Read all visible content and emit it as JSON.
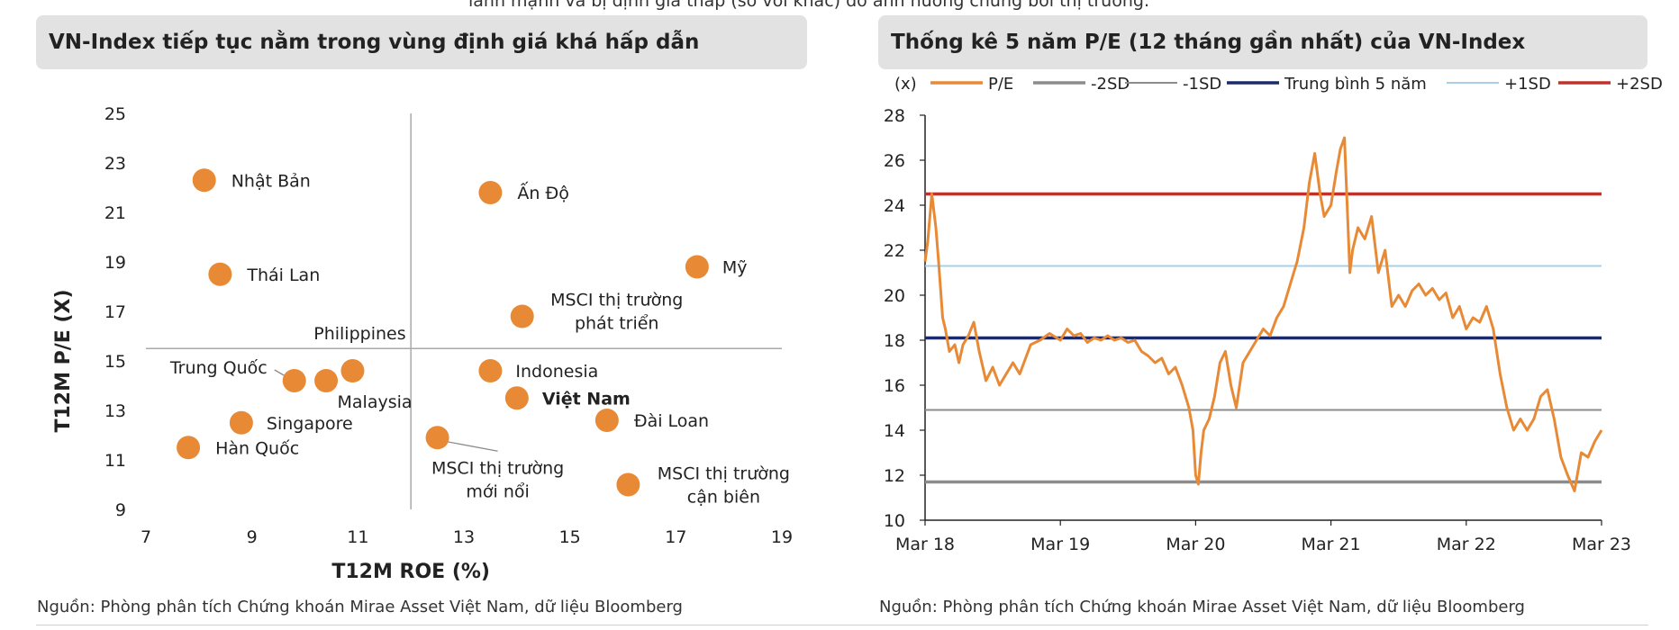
{
  "top_text": "lành mạnh và bị định giá thấp (so với khác) do ảnh hưởng chung bởi thị trường.",
  "left_panel": {
    "title": "VN-Index tiếp tục nằm trong vùng định giá khá hấp dẫn",
    "source": "Nguồn: Phòng phân tích Chứng khoán Mirae Asset Việt Nam, dữ liệu Bloomberg"
  },
  "right_panel": {
    "title": "Thống kê 5 năm P/E (12 tháng gần nhất) của VN-Index",
    "source": "Nguồn: Phòng phân tích Chứng khoán Mirae Asset Việt Nam, dữ liệu Bloomberg"
  },
  "chart_data": [
    {
      "type": "scatter",
      "xlabel": "T12M ROE (%)",
      "ylabel": "T12M P/E (X)",
      "xlim": [
        7,
        19
      ],
      "ylim": [
        9,
        25
      ],
      "xticks": [
        "7",
        "9",
        "11",
        "13",
        "15",
        "17",
        "19"
      ],
      "yticks": [
        "9",
        "11",
        "13",
        "15",
        "17",
        "19",
        "21",
        "23",
        "25"
      ],
      "reference_lines": {
        "x": 12,
        "y": 15.5
      },
      "marker_color": "#e88a35",
      "points": [
        {
          "label": "Nhật Bản",
          "x": 8.1,
          "y": 22.3
        },
        {
          "label": "Ấn Độ",
          "x": 13.5,
          "y": 21.8
        },
        {
          "label": "Mỹ",
          "x": 17.4,
          "y": 18.8
        },
        {
          "label": "Thái Lan",
          "x": 8.4,
          "y": 18.5
        },
        {
          "label": "MSCI thị trường phát triển",
          "x": 14.1,
          "y": 16.8
        },
        {
          "label": "Philippines",
          "x": 10.9,
          "y": 14.6
        },
        {
          "label": "Trung Quốc",
          "x": 9.8,
          "y": 14.2
        },
        {
          "label": "Malaysia",
          "x": 10.4,
          "y": 14.2
        },
        {
          "label": "Indonesia",
          "x": 13.5,
          "y": 14.6
        },
        {
          "label": "Việt Nam",
          "x": 14.0,
          "y": 13.5,
          "bold": true
        },
        {
          "label": "Singapore",
          "x": 8.8,
          "y": 12.5
        },
        {
          "label": "Đài Loan",
          "x": 15.7,
          "y": 12.6
        },
        {
          "label": "Hàn Quốc",
          "x": 7.8,
          "y": 11.5
        },
        {
          "label": "MSCI thị trường mới nổi",
          "x": 12.5,
          "y": 11.9
        },
        {
          "label": "MSCI thị trường cận biên",
          "x": 16.1,
          "y": 10.0
        }
      ]
    },
    {
      "type": "line",
      "unit_label": "(x)",
      "ylim": [
        10,
        28
      ],
      "yticks": [
        "10",
        "12",
        "14",
        "16",
        "18",
        "20",
        "22",
        "24",
        "26",
        "28"
      ],
      "xticks": [
        "Mar 18",
        "Mar 19",
        "Mar 20",
        "Mar 21",
        "Mar 22",
        "Mar 23"
      ],
      "xlim": [
        2018.0,
        2023.0
      ],
      "series": [
        {
          "name": "P/E",
          "color": "#e88a35",
          "x": [
            2018.0,
            2018.02,
            2018.05,
            2018.08,
            2018.1,
            2018.13,
            2018.15,
            2018.18,
            2018.22,
            2018.25,
            2018.28,
            2018.32,
            2018.36,
            2018.4,
            2018.45,
            2018.5,
            2018.55,
            2018.6,
            2018.65,
            2018.7,
            2018.78,
            2018.85,
            2018.92,
            2019.0,
            2019.05,
            2019.1,
            2019.15,
            2019.2,
            2019.25,
            2019.3,
            2019.35,
            2019.4,
            2019.45,
            2019.5,
            2019.55,
            2019.6,
            2019.65,
            2019.7,
            2019.75,
            2019.8,
            2019.85,
            2019.9,
            2019.95,
            2019.98,
            2020.0,
            2020.02,
            2020.04,
            2020.06,
            2020.1,
            2020.14,
            2020.18,
            2020.22,
            2020.26,
            2020.3,
            2020.35,
            2020.4,
            2020.45,
            2020.5,
            2020.55,
            2020.6,
            2020.65,
            2020.7,
            2020.75,
            2020.8,
            2020.84,
            2020.88,
            2020.92,
            2020.95,
            2021.0,
            2021.04,
            2021.07,
            2021.1,
            2021.12,
            2021.14,
            2021.16,
            2021.2,
            2021.25,
            2021.3,
            2021.35,
            2021.4,
            2021.45,
            2021.5,
            2021.55,
            2021.6,
            2021.65,
            2021.7,
            2021.75,
            2021.8,
            2021.85,
            2021.9,
            2021.95,
            2022.0,
            2022.05,
            2022.1,
            2022.15,
            2022.2,
            2022.25,
            2022.3,
            2022.35,
            2022.4,
            2022.45,
            2022.5,
            2022.55,
            2022.6,
            2022.65,
            2022.7,
            2022.75,
            2022.8,
            2022.85,
            2022.9,
            2022.95,
            2023.0
          ],
          "y": [
            21.5,
            22.4,
            24.5,
            23.0,
            21.5,
            19.0,
            18.5,
            17.5,
            17.8,
            17.0,
            17.8,
            18.2,
            18.8,
            17.5,
            16.2,
            16.8,
            16.0,
            16.5,
            17.0,
            16.5,
            17.8,
            18.0,
            18.3,
            18.0,
            18.5,
            18.2,
            18.3,
            17.9,
            18.1,
            18.0,
            18.2,
            18.0,
            18.1,
            17.9,
            18.0,
            17.5,
            17.3,
            17.0,
            17.2,
            16.5,
            16.8,
            16.0,
            15.0,
            14.0,
            12.0,
            11.6,
            13.0,
            14.0,
            14.5,
            15.5,
            17.0,
            17.5,
            16.0,
            15.0,
            17.0,
            17.5,
            18.0,
            18.5,
            18.2,
            19.0,
            19.5,
            20.5,
            21.5,
            23.0,
            25.0,
            26.3,
            24.5,
            23.5,
            24.0,
            25.5,
            26.5,
            27.0,
            24.0,
            21.0,
            22.0,
            23.0,
            22.5,
            23.5,
            21.0,
            22.0,
            19.5,
            20.0,
            19.5,
            20.2,
            20.5,
            20.0,
            20.3,
            19.8,
            20.1,
            19.0,
            19.5,
            18.5,
            19.0,
            18.8,
            19.5,
            18.5,
            16.5,
            15.0,
            14.0,
            14.5,
            14.0,
            14.5,
            15.5,
            15.8,
            14.5,
            12.8,
            12.0,
            11.3,
            13.0,
            12.8,
            13.5,
            14.0
          ]
        },
        {
          "name": "-2SD",
          "color": "#8c8c8c",
          "value": 11.7
        },
        {
          "name": "-1SD",
          "color": "#8c8c8c",
          "value": 14.9
        },
        {
          "name": "Trung bình 5 năm",
          "color": "#1b2a6b",
          "value": 18.1
        },
        {
          "name": "+1SD",
          "color": "#a9d0e8",
          "value": 21.3
        },
        {
          "name": "+2SD",
          "color": "#c0332b",
          "value": 24.5
        }
      ]
    }
  ]
}
